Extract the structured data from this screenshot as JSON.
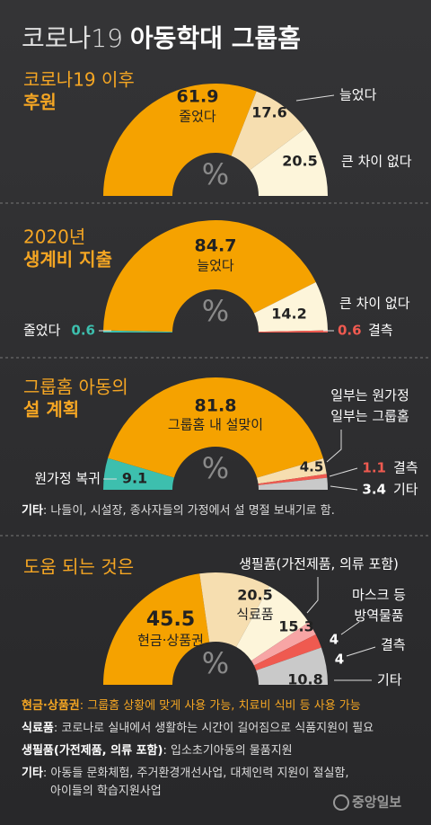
{
  "title": {
    "prefix": "코로나19",
    "main": "아동학대 그룹홈"
  },
  "chart_data": [
    {
      "type": "semi-donut",
      "title": [
        "코로나19 이후",
        "후원"
      ],
      "unit": "%",
      "categories": [
        "줄었다",
        "늘었다",
        "큰 차이 없다"
      ],
      "values": [
        61.9,
        17.6,
        20.5
      ],
      "colors": [
        "#f5a200",
        "#f6deb0",
        "#fdf5da"
      ]
    },
    {
      "type": "semi-donut",
      "title": [
        "2020년",
        "생계비 지출"
      ],
      "unit": "%",
      "categories": [
        "줄었다",
        "늘었다",
        "큰 차이 없다",
        "결측"
      ],
      "values": [
        0.6,
        84.7,
        14.2,
        0.6
      ],
      "colors": [
        "#3dbfae",
        "#f5a200",
        "#fdf5da",
        "#ef5a50"
      ]
    },
    {
      "type": "semi-donut",
      "title": [
        "그룹홈 아동의",
        "설 계획"
      ],
      "unit": "%",
      "categories": [
        "원가정 복귀",
        "그룹홈 내 설맞이",
        "일부는 원가정 일부는 그룹홈",
        "결측",
        "기타"
      ],
      "values": [
        9.1,
        81.8,
        4.5,
        1.1,
        3.4
      ],
      "colors": [
        "#3dbfae",
        "#f5a200",
        "#f6deb0",
        "#ef5a50",
        "#c9c9c9"
      ],
      "note": {
        "label": "기타",
        "text": ": 나들이, 시설장, 종사자들의 가정에서 설 명절 보내기로 함."
      }
    },
    {
      "type": "semi-donut",
      "title": [
        "도움 되는 것은"
      ],
      "unit": "%",
      "categories": [
        "현금·상품권",
        "식료품",
        "생필품(가전제품, 의류 포함)",
        "마스크 등 방역물품",
        "결측",
        "기타"
      ],
      "values": [
        45.5,
        20.5,
        15.3,
        4,
        4,
        10.8
      ],
      "colors": [
        "#f5a200",
        "#f6deb0",
        "#fdf5da",
        "#f7a5a5",
        "#ef5a50",
        "#c9c9c9"
      ]
    }
  ],
  "footnotes": [
    {
      "label": "현금·상품권",
      "text": [
        ": 그룹홈 상황에 맞게 사용 가능, 치료비 식비 등 사용 가능"
      ]
    },
    {
      "label": "식료품",
      "text": [
        ": 코로나로 실내에서 생활하는 시간이 길어짐으로 식품지원이 필요"
      ]
    },
    {
      "label": "생필품(가전제품, 의류 포함)",
      "text": [
        ": 입소초기아동의 물품지원"
      ]
    },
    {
      "label": "기타",
      "text": [
        ": 아동들 문화체험, 주거환경개선사업, 대체인력 지원이 절실함,",
        "아이들의 학습지원사업"
      ]
    }
  ],
  "source": "중앙일보"
}
